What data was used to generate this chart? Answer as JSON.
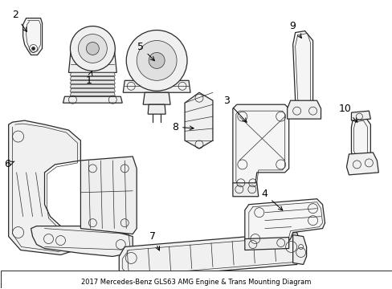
{
  "title": "2017 Mercedes-Benz GLS63 AMG Engine & Trans Mounting Diagram",
  "background_color": "#ffffff",
  "line_color": "#2a2a2a",
  "label_color": "#000000",
  "figsize": [
    4.89,
    3.6
  ],
  "dpi": 100,
  "border_line": true
}
